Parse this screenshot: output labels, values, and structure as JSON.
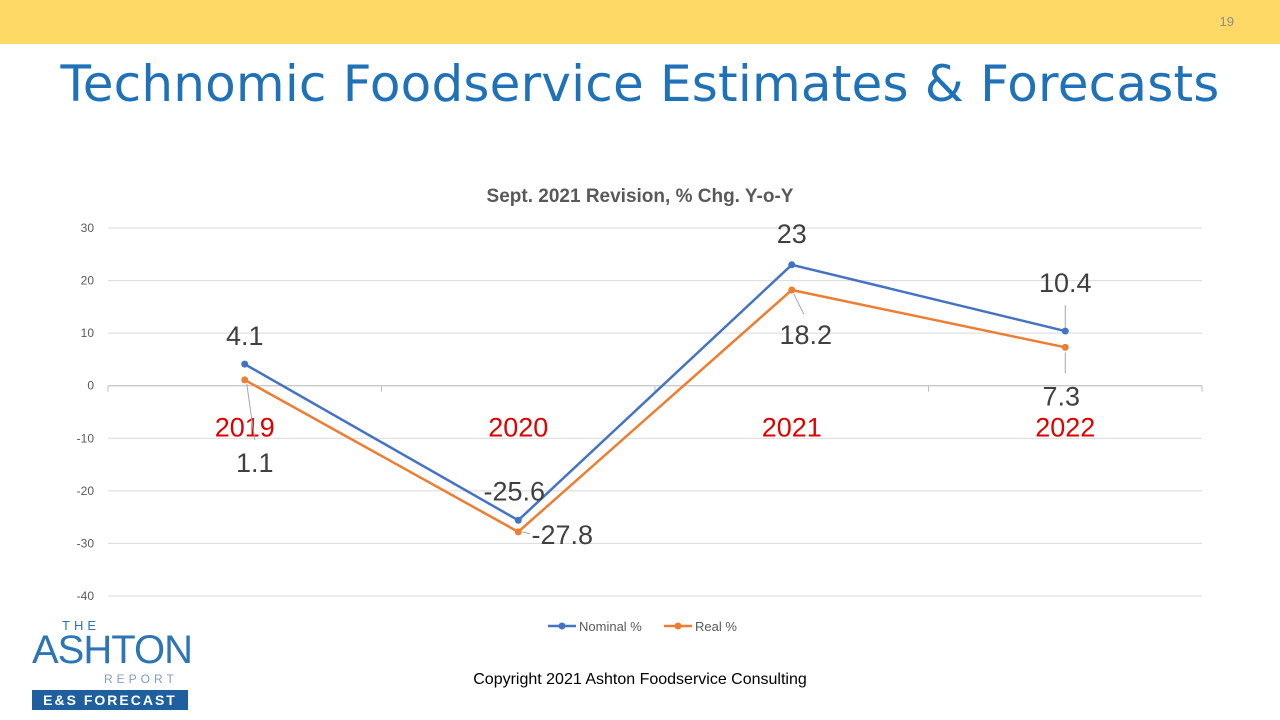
{
  "page": {
    "number": "19",
    "title": "Technomic Foodservice Estimates & Forecasts",
    "copyright": "Copyright 2021 Ashton Foodservice Consulting"
  },
  "logo": {
    "the": "THE",
    "name": "ASHTON",
    "report": "REPORT",
    "tagline": "E&S FORECAST"
  },
  "colors": {
    "band": "#ffd966",
    "title": "#1f72b8",
    "nominal": "#4472c4",
    "real": "#ed7d31",
    "year_labels": "#e00000"
  },
  "chart_data": {
    "type": "line",
    "title": "Sept. 2021 Revision, % Chg. Y-o-Y",
    "categories": [
      "2019",
      "2020",
      "2021",
      "2022"
    ],
    "series": [
      {
        "name": "Nominal %",
        "values": [
          4.1,
          -25.6,
          23,
          10.4
        ],
        "labels": [
          "4.1",
          "-25.6",
          "23",
          "10.4"
        ]
      },
      {
        "name": "Real %",
        "values": [
          1.1,
          -27.8,
          18.2,
          7.3
        ],
        "labels": [
          "1.1",
          "-27.8",
          "18.2",
          "7.3"
        ]
      }
    ],
    "ylim": [
      -40,
      30
    ],
    "yticks": [
      "30",
      "20",
      "10",
      "0",
      "-10",
      "-20",
      "-30",
      "-40"
    ],
    "grid": true,
    "legend": "bottom"
  }
}
